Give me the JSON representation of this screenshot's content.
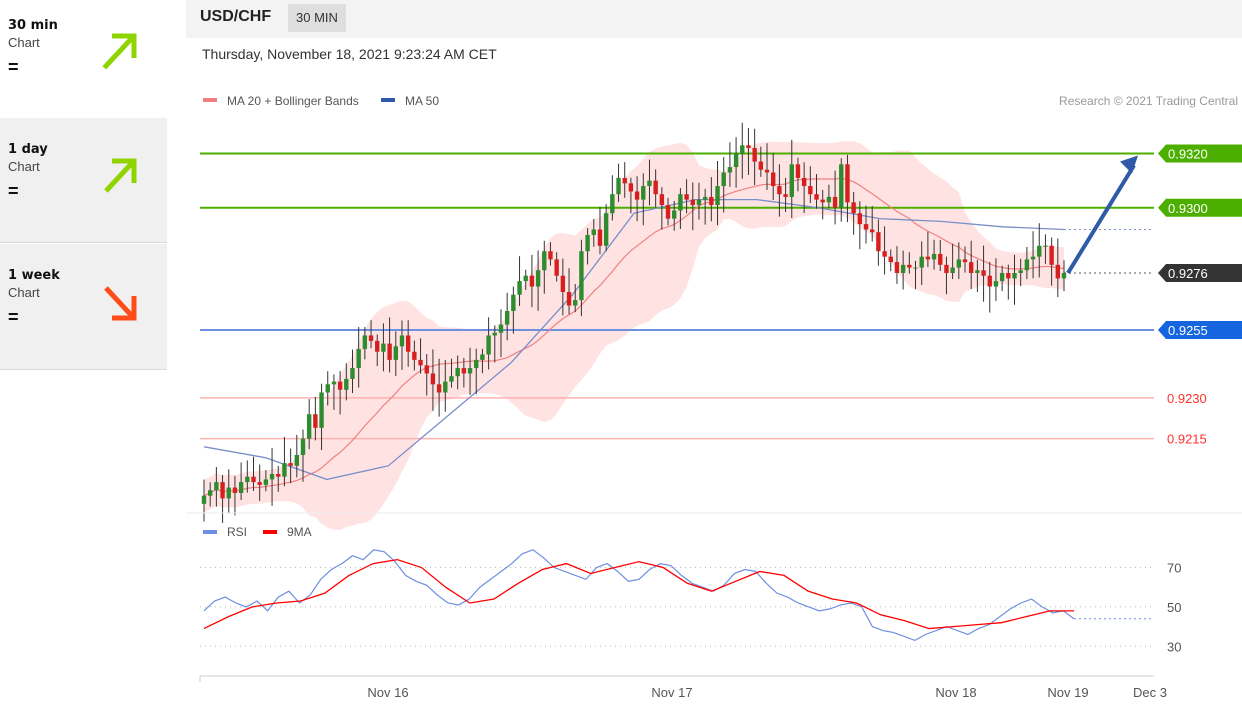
{
  "sidebar": {
    "items": [
      {
        "name": "30 min",
        "sub": "Chart",
        "status": "=",
        "direction": "up",
        "color": "#8fd400",
        "selected": false
      },
      {
        "name": "1 day",
        "sub": "Chart",
        "status": "=",
        "direction": "up",
        "color": "#8fd400",
        "selected": true
      },
      {
        "name": "1 week",
        "sub": "Chart",
        "status": "=",
        "direction": "down",
        "color": "#ff4d1a",
        "selected": true
      }
    ]
  },
  "header": {
    "symbol": "USD/CHF",
    "timeframe": "30 MIN"
  },
  "datetime": "Thursday, November 18, 2021 9:23:24 AM CET",
  "chart_data": [
    {
      "type": "candlestick",
      "legend": [
        {
          "name": "MA 20 + Bollinger Bands",
          "color": "#f08080"
        },
        {
          "name": "MA 50",
          "color": "#2e5aa8"
        }
      ],
      "credit": "Research © 2021 Trading Central",
      "ylim": [
        0.9188,
        0.9336
      ],
      "levels": [
        {
          "value": 0.932,
          "label": "0.9320",
          "color": "#4caf00",
          "kind": "resistance"
        },
        {
          "value": 0.93,
          "label": "0.9300",
          "color": "#4caf00",
          "kind": "resistance"
        },
        {
          "value": 0.9276,
          "label": "0.9276",
          "color": "#333333",
          "kind": "current"
        },
        {
          "value": 0.9255,
          "label": "0.9255",
          "color": "#1565e0",
          "kind": "pivot"
        },
        {
          "value": 0.923,
          "label": "0.9230",
          "color": "#ff3030",
          "kind": "support"
        },
        {
          "value": 0.9215,
          "label": "0.9215",
          "color": "#ff3030",
          "kind": "support"
        }
      ],
      "x_ticks": [
        "Nov 16",
        "Nov 17",
        "Nov 18",
        "Nov 19",
        "Dec 3"
      ],
      "close_series": [
        0.9194,
        0.9196,
        0.9199,
        0.9193,
        0.9197,
        0.9195,
        0.9199,
        0.9201,
        0.9199,
        0.9198,
        0.92,
        0.9202,
        0.9201,
        0.9206,
        0.9205,
        0.9209,
        0.9215,
        0.9224,
        0.9219,
        0.9232,
        0.9235,
        0.9236,
        0.9233,
        0.9237,
        0.9241,
        0.9248,
        0.9253,
        0.9251,
        0.9247,
        0.925,
        0.9244,
        0.9249,
        0.9253,
        0.9247,
        0.9244,
        0.9242,
        0.9239,
        0.9235,
        0.9232,
        0.9236,
        0.9238,
        0.9241,
        0.9239,
        0.9241,
        0.9244,
        0.9246,
        0.9253,
        0.9254,
        0.9257,
        0.9262,
        0.9268,
        0.9273,
        0.9275,
        0.9271,
        0.9277,
        0.9284,
        0.9281,
        0.9275,
        0.9269,
        0.9264,
        0.9266,
        0.9284,
        0.929,
        0.9292,
        0.9286,
        0.9298,
        0.9305,
        0.9311,
        0.9309,
        0.9306,
        0.9303,
        0.9308,
        0.931,
        0.9305,
        0.9301,
        0.9296,
        0.9299,
        0.9305,
        0.9303,
        0.9301,
        0.9303,
        0.9304,
        0.9301,
        0.9308,
        0.9313,
        0.9315,
        0.932,
        0.9323,
        0.9322,
        0.9317,
        0.9314,
        0.9313,
        0.9308,
        0.9305,
        0.9304,
        0.9316,
        0.9311,
        0.9308,
        0.9305,
        0.9303,
        0.9302,
        0.9304,
        0.93,
        0.9316,
        0.9302,
        0.9298,
        0.9294,
        0.9292,
        0.9291,
        0.9284,
        0.9282,
        0.928,
        0.9276,
        0.9279,
        0.9278,
        0.9278,
        0.9282,
        0.9281,
        0.9283,
        0.9279,
        0.9276,
        0.9278,
        0.9281,
        0.928,
        0.9276,
        0.9277,
        0.9275,
        0.9271,
        0.9273,
        0.9276,
        0.9274,
        0.9276,
        0.9277,
        0.9281,
        0.9282,
        0.9286,
        0.9286,
        0.9279,
        0.9274,
        0.9276
      ],
      "ma50_series": [
        0.9212,
        0.9208,
        0.92,
        0.9205,
        0.9224,
        0.9243,
        0.9268,
        0.9298,
        0.9303,
        0.9303,
        0.93,
        0.9296,
        0.9295,
        0.9293,
        0.9292
      ]
    },
    {
      "type": "line",
      "legend": [
        {
          "name": "RSI",
          "color": "#6f8fe0"
        },
        {
          "name": "9MA",
          "color": "#ff0000"
        }
      ],
      "y_ticks": [
        30,
        50,
        70
      ],
      "ylim": [
        20,
        85
      ],
      "rsi_series": [
        48,
        53,
        55,
        52,
        50,
        53,
        48,
        55,
        58,
        52,
        56,
        64,
        69,
        72,
        76,
        74,
        79,
        78,
        73,
        66,
        63,
        61,
        56,
        52,
        51,
        54,
        60,
        64,
        68,
        72,
        77,
        79,
        75,
        70,
        68,
        66,
        64,
        70,
        72,
        68,
        63,
        64,
        69,
        72,
        71,
        66,
        62,
        60,
        58,
        61,
        67,
        69,
        68,
        62,
        57,
        55,
        52,
        50,
        48,
        49,
        51,
        52,
        50,
        40,
        38,
        37,
        35,
        33,
        36,
        38,
        40,
        38,
        36,
        39,
        41,
        45,
        49,
        52,
        54,
        50,
        47,
        48,
        44
      ],
      "ma9_series": [
        39,
        45,
        50,
        52,
        53,
        57,
        66,
        72,
        74,
        70,
        60,
        52,
        54,
        62,
        69,
        72,
        67,
        70,
        73,
        70,
        62,
        58,
        63,
        68,
        66,
        58,
        54,
        52,
        46,
        43,
        39,
        40,
        41,
        42,
        45,
        48,
        48
      ]
    }
  ]
}
